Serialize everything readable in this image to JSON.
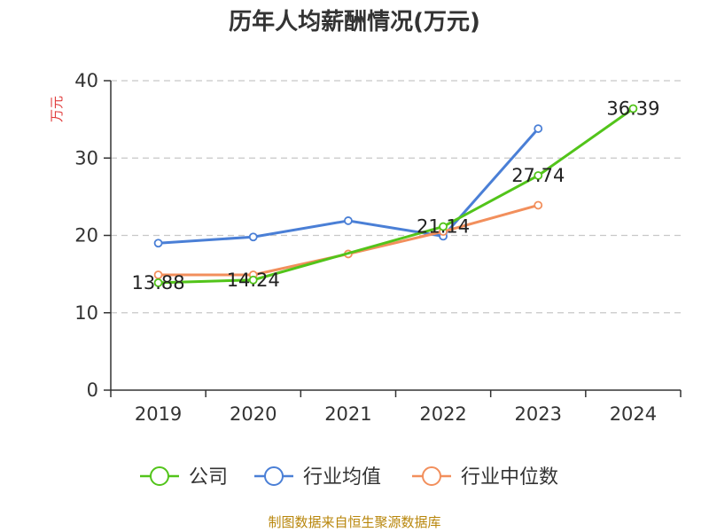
{
  "chart_data": {
    "type": "line",
    "title": "历年人均薪酬情况(万元)",
    "ylabel": "万元",
    "xlabel": "",
    "categories": [
      "2019",
      "2020",
      "2021",
      "2022",
      "2023",
      "2024"
    ],
    "ylim": [
      0,
      40
    ],
    "yticks": [
      0,
      10,
      20,
      30,
      40
    ],
    "grid": true,
    "legend_position": "bottom",
    "series": [
      {
        "name": "公司",
        "color": "#52c41a",
        "values": [
          13.88,
          14.24,
          null,
          21.14,
          27.74,
          36.39
        ],
        "labels": [
          "13.88",
          "14.24",
          "",
          "21.14",
          "27.74",
          "36.39"
        ]
      },
      {
        "name": "行业均值",
        "color": "#4a7fd6",
        "values": [
          19.0,
          19.8,
          21.9,
          19.9,
          33.8,
          null
        ],
        "labels": []
      },
      {
        "name": "行业中位数",
        "color": "#f28f5c",
        "values": [
          14.9,
          14.9,
          17.6,
          20.5,
          23.9,
          null
        ],
        "labels": []
      }
    ]
  },
  "source": "制图数据来自恒生聚源数据库"
}
